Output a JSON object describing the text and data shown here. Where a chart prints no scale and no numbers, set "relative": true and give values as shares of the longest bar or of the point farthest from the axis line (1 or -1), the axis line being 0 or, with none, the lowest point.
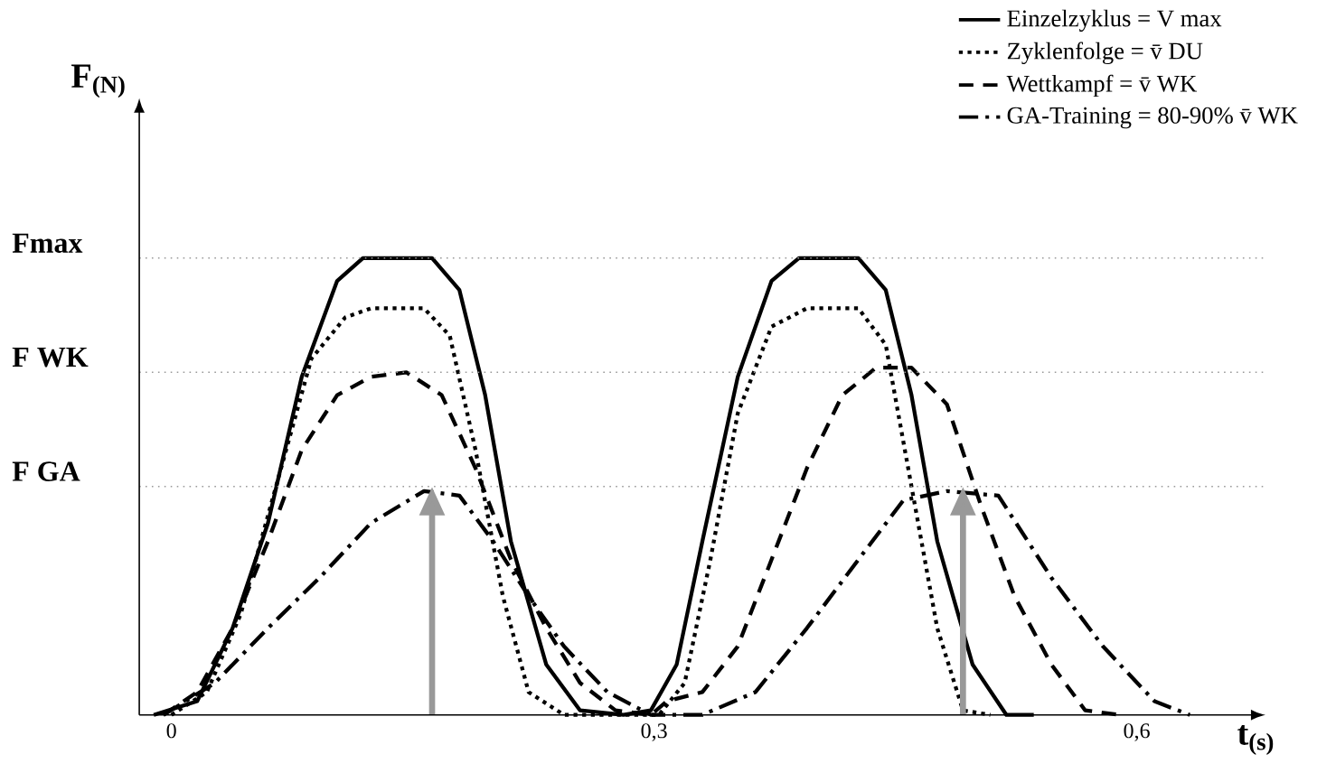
{
  "chart_data": {
    "type": "line",
    "relative": true,
    "xlabel": "t$_{(s)}$",
    "ylabel": "F$_{(N)}$",
    "xlim": [
      -0.02,
      0.68
    ],
    "xticks": [
      0,
      {
        "value": 0.3,
        "label": "0,3"
      },
      {
        "value": 0.6,
        "label": "0,6"
      }
    ],
    "legend": "top right",
    "grid": false,
    "marker": "none",
    "ref_lines": [
      {
        "axis": "y",
        "value": 1,
        "label": "Fmax",
        "color": "#999999",
        "line_style": "dotted"
      },
      {
        "axis": "y",
        "value": 0.75,
        "label": "F WK",
        "color": "#999999",
        "line_style": "dotted"
      },
      {
        "axis": "y",
        "value": 0.5,
        "label": "F GA",
        "color": "#999999",
        "line_style": "dotted"
      },
      {
        "axis": "x",
        "value": 0.162,
        "color": "#999999"
      },
      {
        "axis": "x",
        "value": 0.492,
        "color": "#999999"
      }
    ],
    "series": [
      {
        "name": "Einzelzyklus = V max",
        "color": "#000000",
        "line_style": "solid",
        "x": [
          -0.011,
          0.016,
          0.038,
          0.06,
          0.081,
          0.103,
          0.119,
          0.162,
          0.179,
          0.195,
          0.211,
          0.233,
          0.254,
          0.281,
          0.298,
          0.314,
          0.33,
          0.352,
          0.373,
          0.39,
          0.427,
          0.444,
          0.46,
          0.476,
          0.498,
          0.519,
          0.536
        ],
        "values": [
          0,
          0.03,
          0.19,
          0.42,
          0.74,
          0.95,
          1,
          1,
          0.93,
          0.7,
          0.38,
          0.11,
          0.01,
          0,
          0.01,
          0.11,
          0.38,
          0.74,
          0.95,
          1,
          1,
          0.93,
          0.7,
          0.38,
          0.11,
          0,
          0
        ]
      },
      {
        "name": "Zyklenfolge = v̄ DU",
        "color": "#000000",
        "line_style": "dotted",
        "x": [
          0,
          0.022,
          0.043,
          0.065,
          0.087,
          0.108,
          0.124,
          0.157,
          0.173,
          0.189,
          0.206,
          0.222,
          0.244,
          0.303,
          0.319,
          0.335,
          0.352,
          0.373,
          0.395,
          0.427,
          0.444,
          0.46,
          0.476,
          0.492,
          0.509
        ],
        "values": [
          0,
          0.05,
          0.22,
          0.5,
          0.78,
          0.87,
          0.89,
          0.89,
          0.83,
          0.58,
          0.26,
          0.05,
          0,
          0,
          0.07,
          0.34,
          0.66,
          0.85,
          0.89,
          0.89,
          0.81,
          0.5,
          0.19,
          0.01,
          0
        ]
      },
      {
        "name": "Wettkampf = v̄ WK",
        "color": "#000000",
        "line_style": "dashed",
        "x": [
          -0.005,
          0.016,
          0.038,
          0.06,
          0.081,
          0.103,
          0.124,
          0.146,
          0.168,
          0.189,
          0.211,
          0.233,
          0.254,
          0.276,
          0.298,
          0.308,
          0.33,
          0.352,
          0.373,
          0.395,
          0.417,
          0.438,
          0.46,
          0.482,
          0.503,
          0.524,
          0.547,
          0.568,
          0.59
        ],
        "values": [
          0,
          0.05,
          0.19,
          0.38,
          0.58,
          0.7,
          0.74,
          0.75,
          0.7,
          0.54,
          0.34,
          0.19,
          0.07,
          0.01,
          0,
          0.03,
          0.05,
          0.15,
          0.34,
          0.54,
          0.7,
          0.76,
          0.76,
          0.68,
          0.46,
          0.26,
          0.11,
          0.01,
          0
        ]
      },
      {
        "name": "GA-Training = 80-90% v̄ WK",
        "color": "#000000",
        "line_style": "dashdot",
        "x": [
          -0.005,
          0.027,
          0.06,
          0.092,
          0.124,
          0.157,
          0.179,
          0.2,
          0.222,
          0.244,
          0.271,
          0.298,
          0.33,
          0.363,
          0.395,
          0.427,
          0.455,
          0.482,
          0.514,
          0.547,
          0.579,
          0.611,
          0.633
        ],
        "values": [
          0,
          0.07,
          0.19,
          0.3,
          0.42,
          0.49,
          0.48,
          0.38,
          0.26,
          0.15,
          0.05,
          0,
          0,
          0.05,
          0.19,
          0.34,
          0.47,
          0.49,
          0.48,
          0.3,
          0.15,
          0.03,
          0
        ]
      }
    ]
  }
}
